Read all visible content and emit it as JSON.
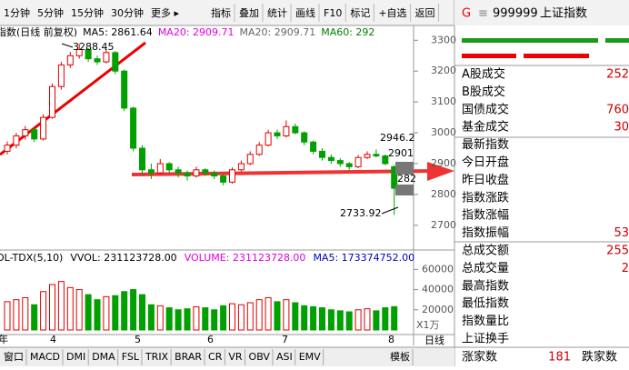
{
  "toolbar": {
    "left": [
      "1分钟",
      "5分钟",
      "15分钟",
      "30分钟",
      "更多 ▸"
    ],
    "right": [
      "指标",
      "叠加",
      "统计",
      "画线",
      "F10",
      "标记",
      "+自选",
      "返回"
    ]
  },
  "chart_data": {
    "type": "candlestick",
    "legend": [
      "指数(日线 前复权)",
      "MA5: 2861.64",
      "MA20: 2909.71",
      "MA20: 2909.71",
      "MA60: 292"
    ],
    "annotations": [
      "3288.45",
      "2946.2",
      "2901",
      "282",
      "2733.92"
    ],
    "ylim": [
      2620,
      3348
    ],
    "yticks": [
      3300,
      3200,
      3100,
      3000,
      2900,
      2800,
      2700
    ],
    "up_color": "#e00000",
    "down_color": "#00a000",
    "ohlc": [
      [
        2940,
        2972,
        2930,
        2960
      ],
      [
        2960,
        3000,
        2950,
        2990
      ],
      [
        2990,
        3022,
        2978,
        3010
      ],
      [
        3010,
        3015,
        2970,
        2980
      ],
      [
        2980,
        3060,
        2975,
        3050
      ],
      [
        3050,
        3160,
        3045,
        3150
      ],
      [
        3150,
        3230,
        3140,
        3220
      ],
      [
        3220,
        3262,
        3210,
        3250
      ],
      [
        3250,
        3288.45,
        3240,
        3270
      ],
      [
        3270,
        3275,
        3230,
        3240
      ],
      [
        3240,
        3250,
        3220,
        3230
      ],
      [
        3230,
        3272,
        3225,
        3260
      ],
      [
        3260,
        3265,
        3190,
        3200
      ],
      [
        3200,
        3205,
        3070,
        3080
      ],
      [
        3080,
        3085,
        2940,
        2950
      ],
      [
        2950,
        2960,
        2860,
        2880
      ],
      [
        2880,
        2900,
        2850,
        2870
      ],
      [
        2870,
        2915,
        2865,
        2900
      ],
      [
        2900,
        2905,
        2870,
        2880
      ],
      [
        2880,
        2890,
        2855,
        2870
      ],
      [
        2870,
        2878,
        2845,
        2860
      ],
      [
        2860,
        2890,
        2855,
        2880
      ],
      [
        2880,
        2885,
        2860,
        2870
      ],
      [
        2870,
        2878,
        2850,
        2860
      ],
      [
        2860,
        2865,
        2830,
        2840
      ],
      [
        2840,
        2888,
        2835,
        2880
      ],
      [
        2880,
        2910,
        2875,
        2900
      ],
      [
        2900,
        2940,
        2895,
        2930
      ],
      [
        2930,
        2970,
        2925,
        2960
      ],
      [
        2960,
        3010,
        2955,
        3000
      ],
      [
        3000,
        3010,
        2980,
        2990
      ],
      [
        2990,
        3040,
        2985,
        3020
      ],
      [
        3020,
        3030,
        2995,
        3000
      ],
      [
        3000,
        3005,
        2960,
        2970
      ],
      [
        2970,
        2975,
        2930,
        2940
      ],
      [
        2940,
        2950,
        2910,
        2920
      ],
      [
        2920,
        2930,
        2900,
        2910
      ],
      [
        2910,
        2918,
        2890,
        2900
      ],
      [
        2900,
        2905,
        2880,
        2890
      ],
      [
        2890,
        2928,
        2885,
        2920
      ],
      [
        2920,
        2940,
        2915,
        2930
      ],
      [
        2930,
        2946.2,
        2920,
        2925
      ],
      [
        2925,
        2930,
        2895,
        2900
      ],
      [
        2890,
        2895,
        2733.92,
        2820
      ]
    ],
    "volume": {
      "header": [
        "OL-TDX(5,10)",
        "VVOL: 231123728.00",
        "VOLUME: 231123728.00",
        "MA5: 173374752.00"
      ],
      "values": [
        28000,
        30000,
        32000,
        25000,
        38000,
        45000,
        48000,
        42000,
        40000,
        35000,
        30000,
        33000,
        34000,
        38000,
        40000,
        35000,
        25000,
        24000,
        22000,
        20000,
        21000,
        23000,
        22000,
        20000,
        24000,
        26000,
        25000,
        27000,
        30000,
        32000,
        28000,
        30000,
        27000,
        24000,
        23000,
        22000,
        20000,
        19000,
        18000,
        20000,
        21000,
        19000,
        22000,
        23112
      ],
      "ylim": [
        0,
        72000
      ],
      "yticks": [
        60000,
        40000,
        20000
      ],
      "unit": "X1万"
    },
    "dates": [
      "年",
      "4",
      "5",
      "6",
      "7",
      "8"
    ],
    "period": "日线"
  },
  "tabs": [
    "窗口",
    "MACD",
    "DMI",
    "DMA",
    "FSL",
    "TRIX",
    "BRAR",
    "CR",
    "VR",
    "OBV",
    "ASI",
    "EMV",
    "模板"
  ],
  "quote_panel": {
    "prefix": "G",
    "menu": "≡",
    "code": "999999",
    "name": "上证指数",
    "rows": [
      {
        "label": "A股成交",
        "value": "252"
      },
      {
        "label": "B股成交"
      },
      {
        "label": "国债成交",
        "value": "760"
      },
      {
        "label": "基金成交",
        "value": "30"
      },
      {
        "label": "最新指数"
      },
      {
        "label": "今日开盘"
      },
      {
        "label": "昨日收盘"
      },
      {
        "label": "指数涨跌"
      },
      {
        "label": "指数涨幅"
      },
      {
        "label": "指数振幅",
        "value": "53"
      },
      {
        "label": "总成交额",
        "value": "255"
      },
      {
        "label": "总成交量",
        "value": "2"
      },
      {
        "label": "最高指数"
      },
      {
        "label": "最低指数"
      },
      {
        "label": "指数量比"
      },
      {
        "label": "上证换手"
      }
    ],
    "footer": {
      "up_label": "涨家数",
      "up_value": "181",
      "down_label": "跌家数"
    }
  }
}
